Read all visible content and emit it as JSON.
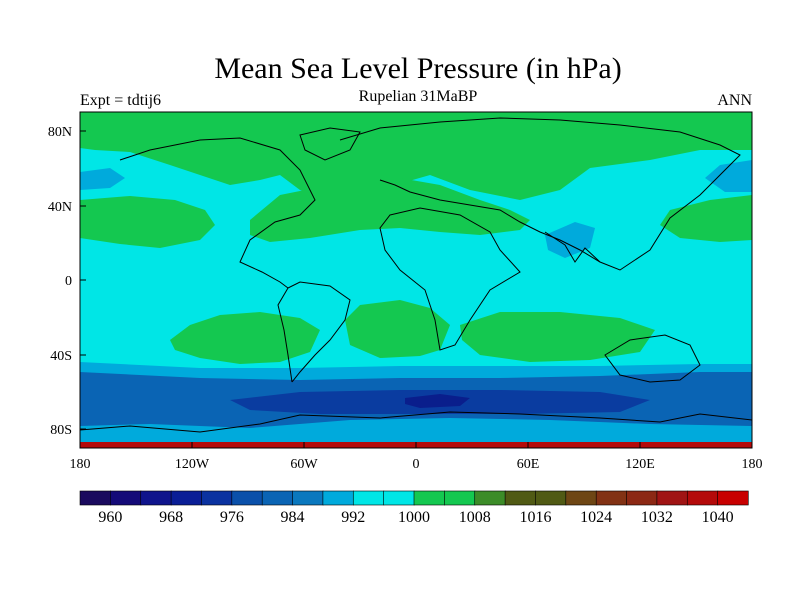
{
  "title": "Mean Sea Level Pressure (in hPa)",
  "subtitle": "Rupelian  31MaBP",
  "left_label": "Expt = tdtij6",
  "right_label": "ANN",
  "lat_ticks": [
    "80N",
    "40N",
    "0",
    "40S",
    "80S"
  ],
  "lon_ticks": [
    "180",
    "120W",
    "60W",
    "0",
    "60E",
    "120E",
    "180"
  ],
  "colorbar": {
    "labels": [
      "960",
      "968",
      "976",
      "984",
      "992",
      "1000",
      "1008",
      "1016",
      "1024",
      "1032",
      "1040"
    ],
    "colors": [
      "#1a0a5e",
      "#140a78",
      "#0f148c",
      "#0a1e96",
      "#0a32a0",
      "#0a50aa",
      "#0a64b4",
      "#0a78be",
      "#00aadc",
      "#00e6e6",
      "#00e6e6",
      "#14c850",
      "#14c850",
      "#3c8c28",
      "#505a14",
      "#505a14",
      "#6e4614",
      "#823214",
      "#8c2814",
      "#a01414",
      "#b40a0a",
      "#c80000"
    ]
  },
  "colors": {
    "ocean_1000": "#00e6e6",
    "high_1008": "#14c850",
    "low_992": "#00aadc",
    "low_984": "#0a64b4",
    "low_976": "#0a3ca0",
    "low_968": "#0a1e8c",
    "polar_high": "#b40a0a"
  }
}
